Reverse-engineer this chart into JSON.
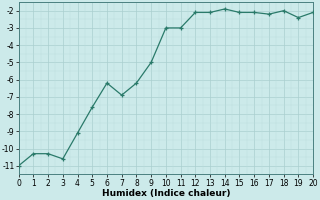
{
  "xlabel": "Humidex (Indice chaleur)",
  "x": [
    0,
    1,
    2,
    3,
    4,
    5,
    6,
    7,
    8,
    9,
    10,
    11,
    12,
    13,
    14,
    15,
    16,
    17,
    18,
    19,
    20
  ],
  "y": [
    -11,
    -10.3,
    -10.3,
    -10.6,
    -9.1,
    -7.6,
    -6.2,
    -6.9,
    -6.2,
    -5.0,
    -3.0,
    -3.0,
    -2.1,
    -2.1,
    -1.9,
    -2.1,
    -2.1,
    -2.2,
    -2.0,
    -2.4,
    -2.1
  ],
  "line_color": "#2a7a6a",
  "bg_color": "#cceaea",
  "grid_major_color": "#aacfcf",
  "grid_minor_color": "#bbdcdc",
  "xlim": [
    0,
    20
  ],
  "ylim": [
    -11.5,
    -1.5
  ],
  "yticks": [
    -11,
    -10,
    -9,
    -8,
    -7,
    -6,
    -5,
    -4,
    -3,
    -2
  ],
  "xticks": [
    0,
    1,
    2,
    3,
    4,
    5,
    6,
    7,
    8,
    9,
    10,
    11,
    12,
    13,
    14,
    15,
    16,
    17,
    18,
    19,
    20
  ],
  "tick_fontsize": 5.5,
  "xlabel_fontsize": 6.5
}
